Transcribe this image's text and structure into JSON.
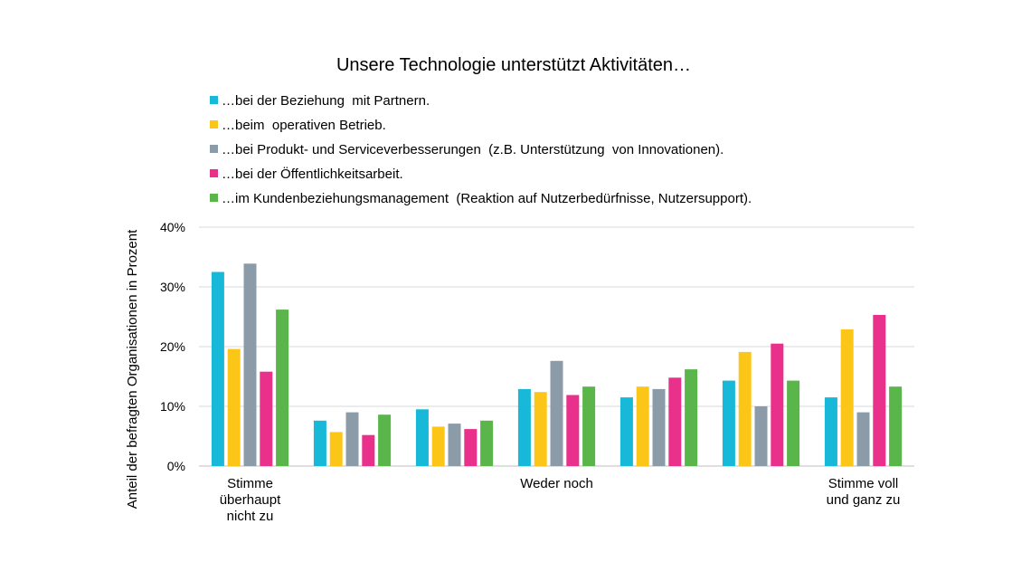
{
  "chart_data": {
    "type": "bar",
    "title": "Unsere Technologie unterstützt Aktivitäten…",
    "ylabel": "Anteil der befragten Organisationen in Prozent",
    "xlabel": "",
    "ylim": [
      0,
      0.4
    ],
    "yticks": [
      {
        "value": 0,
        "label": "0%"
      },
      {
        "value": 0.1,
        "label": "10%"
      },
      {
        "value": 0.2,
        "label": "20%"
      },
      {
        "value": 0.3,
        "label": "30%"
      },
      {
        "value": 0.4,
        "label": "40%"
      }
    ],
    "grid": true,
    "legend_position": "top",
    "categories": [
      [
        "Stimme",
        "überhaupt",
        "nicht zu"
      ],
      [],
      [],
      [
        "Weder noch"
      ],
      [],
      [],
      [
        "Stimme voll",
        "und ganz zu"
      ]
    ],
    "series": [
      {
        "name": "…bei der Beziehung  mit Partnern.",
        "color": "#17b8d8",
        "values": [
          0.325,
          0.076,
          0.095,
          0.129,
          0.115,
          0.143,
          0.115
        ]
      },
      {
        "name": "…beim  operativen Betrieb.",
        "color": "#fcc619",
        "values": [
          0.196,
          0.057,
          0.066,
          0.124,
          0.133,
          0.191,
          0.229
        ]
      },
      {
        "name": "…bei Produkt- und Serviceverbesserungen  (z.B. Unterstützung  von Innovationen).",
        "color": "#8c9ba8",
        "values": [
          0.339,
          0.09,
          0.071,
          0.176,
          0.129,
          0.1,
          0.09
        ]
      },
      {
        "name": "…bei der Öffentlichkeitsarbeit.",
        "color": "#e9308a",
        "values": [
          0.158,
          0.052,
          0.062,
          0.119,
          0.148,
          0.205,
          0.253
        ]
      },
      {
        "name": "…im Kundenbeziehungsmanagement  (Reaktion auf Nutzerbedürfnisse, Nutzersupport).",
        "color": "#5ab54b",
        "values": [
          0.262,
          0.086,
          0.076,
          0.133,
          0.162,
          0.143,
          0.133
        ]
      }
    ]
  }
}
